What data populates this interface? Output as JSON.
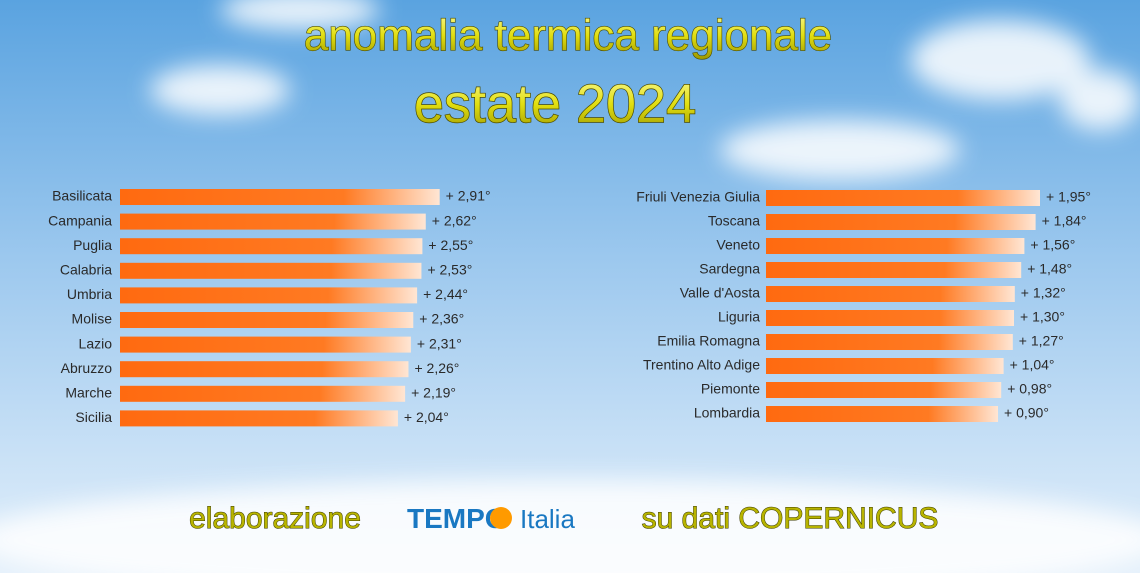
{
  "title": "anomalia termica regionale",
  "subtitle": "estate 2024",
  "chart_data": [
    {
      "type": "bar",
      "color": "#ff6a10",
      "categories": [
        "Basilicata",
        "Campania",
        "Puglia",
        "Calabria",
        "Umbria",
        "Molise",
        "Lazio",
        "Abruzzo",
        "Marche",
        "Sicilia"
      ],
      "values": [
        2.91,
        2.62,
        2.55,
        2.53,
        2.44,
        2.36,
        2.31,
        2.26,
        2.19,
        2.04
      ],
      "value_labels": [
        "+ 2,91°",
        "+ 2,62°",
        "+ 2,55°",
        "+ 2,53°",
        "+ 2,44°",
        "+ 2,36°",
        "+ 2,31°",
        "+ 2,26°",
        "+ 2,19°",
        "+ 2,04°"
      ]
    },
    {
      "type": "bar",
      "color": "#ff6a10",
      "categories": [
        "Friuli Venezia Giulia",
        "Toscana",
        "Veneto",
        "Sardegna",
        "Valle d'Aosta",
        "Liguria",
        "Emilia Romagna",
        "Trentino Alto Adige",
        "Piemonte",
        "Lombardia"
      ],
      "values": [
        1.95,
        1.84,
        1.56,
        1.48,
        1.32,
        1.3,
        1.27,
        1.04,
        0.98,
        0.9
      ],
      "value_labels": [
        "+ 1,95°",
        "+ 1,84°",
        "+ 1,56°",
        "+ 1,48°",
        "+ 1,32°",
        "+ 1,30°",
        "+ 1,27°",
        "+ 1,04°",
        "+ 0,98°",
        "+ 0,90°"
      ]
    }
  ],
  "footer": {
    "prefix": "elaborazione",
    "brand_main": "TEMPO",
    "brand_second": "Italia",
    "suffix": "su dati COPERNICUS"
  }
}
